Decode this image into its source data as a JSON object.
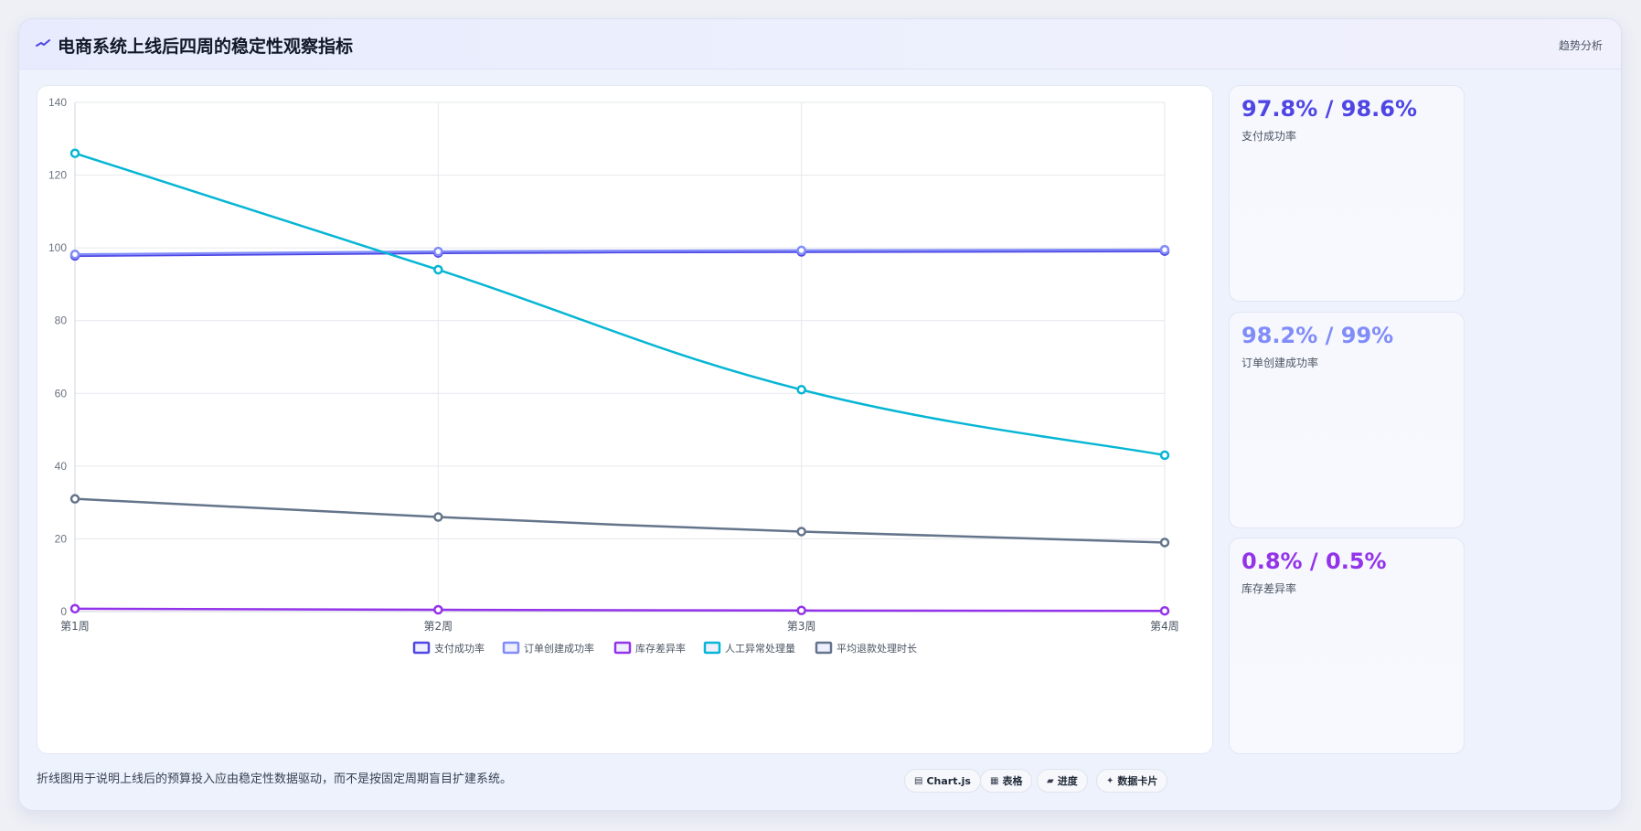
{
  "header": {
    "title": "电商系统上线后四周的稳定性观察指标",
    "right_label": "趋势分析"
  },
  "chart_data": {
    "type": "line",
    "categories": [
      "第1周",
      "第2周",
      "第3周",
      "第4周"
    ],
    "ylim": [
      0,
      140
    ],
    "yticks": [
      0,
      20,
      40,
      60,
      80,
      100,
      120,
      140
    ],
    "grid": true,
    "legend_position": "bottom",
    "series": [
      {
        "name": "支付成功率",
        "color": "#4f46e5",
        "values": [
          97.8,
          98.6,
          98.9,
          99.1
        ]
      },
      {
        "name": "订单创建成功率",
        "color": "#818cf8",
        "values": [
          98.2,
          99.0,
          99.3,
          99.5
        ]
      },
      {
        "name": "库存差异率",
        "color": "#9333ea",
        "values": [
          0.8,
          0.5,
          0.3,
          0.2
        ]
      },
      {
        "name": "人工异常处理量",
        "color": "#06b6d4",
        "values": [
          126,
          94,
          61,
          43
        ]
      },
      {
        "name": "平均退款处理时长",
        "color": "#64748b",
        "values": [
          31,
          26,
          22,
          19
        ]
      }
    ]
  },
  "cards": [
    {
      "value": "97.8% / 98.6%",
      "label": "支付成功率",
      "color": "#4f46e5"
    },
    {
      "value": "98.2% / 99%",
      "label": "订单创建成功率",
      "color": "#818cf8"
    },
    {
      "value": "0.8% / 0.5%",
      "label": "库存差异率",
      "color": "#9333ea"
    }
  ],
  "footer": {
    "note": "折线图用于说明上线后的预算投入应由稳定性数据驱动，而不是按固定周期盲目扩建系统。",
    "chips": [
      {
        "icon": "▤",
        "label": "Chart.js"
      },
      {
        "icon": "▦",
        "label": "表格"
      },
      {
        "icon": "▰",
        "label": "进度"
      },
      {
        "icon": "✦",
        "label": "数据卡片"
      }
    ]
  }
}
